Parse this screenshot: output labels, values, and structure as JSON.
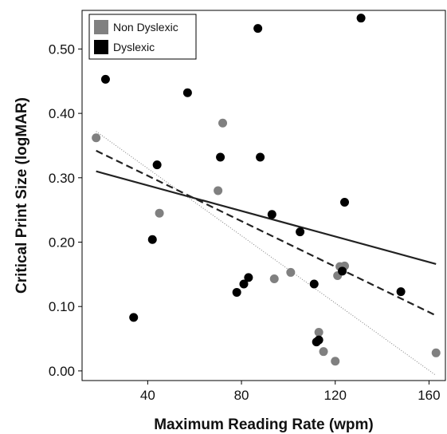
{
  "chart_data": {
    "type": "scatter",
    "xlabel": "Maximum Reading Rate (wpm)",
    "ylabel": "Critical Print Size (logMAR)",
    "xlim": [
      12,
      167
    ],
    "ylim": [
      -0.015,
      0.56
    ],
    "xticks": [
      40,
      80,
      120,
      160
    ],
    "yticks": [
      0.0,
      0.1,
      0.2,
      0.3,
      0.4,
      0.5
    ],
    "xtick_labels": [
      "40",
      "80",
      "120",
      "160"
    ],
    "ytick_labels": [
      "0.00",
      "0.10",
      "0.20",
      "0.30",
      "0.40",
      "0.50"
    ],
    "grid": false,
    "legend": {
      "position": "top-left"
    },
    "series": [
      {
        "name": "Non Dyslexic",
        "color": "#808080",
        "points": [
          [
            18,
            0.362
          ],
          [
            45,
            0.245
          ],
          [
            70,
            0.28
          ],
          [
            72,
            0.385
          ],
          [
            94,
            0.143
          ],
          [
            101,
            0.153
          ],
          [
            113,
            0.06
          ],
          [
            115,
            0.03
          ],
          [
            120,
            0.015
          ],
          [
            121,
            0.148
          ],
          [
            122,
            0.162
          ],
          [
            124,
            0.163
          ],
          [
            163,
            0.028
          ]
        ]
      },
      {
        "name": "Dyslexic",
        "color": "#000000",
        "points": [
          [
            22,
            0.453
          ],
          [
            34,
            0.083
          ],
          [
            42,
            0.204
          ],
          [
            44,
            0.32
          ],
          [
            57,
            0.432
          ],
          [
            71,
            0.332
          ],
          [
            78,
            0.122
          ],
          [
            81,
            0.135
          ],
          [
            83,
            0.145
          ],
          [
            87,
            0.532
          ],
          [
            88,
            0.332
          ],
          [
            93,
            0.243
          ],
          [
            105,
            0.216
          ],
          [
            111,
            0.135
          ],
          [
            112,
            0.045
          ],
          [
            113,
            0.048
          ],
          [
            123,
            0.155
          ],
          [
            124,
            0.262
          ],
          [
            131,
            0.548
          ],
          [
            148,
            0.123
          ]
        ]
      }
    ],
    "fit_lines": [
      {
        "style": "dotted",
        "color": "#808080",
        "x": [
          18,
          163
        ],
        "y": [
          0.372,
          -0.007
        ]
      },
      {
        "style": "dashed",
        "color": "#222222",
        "x": [
          18,
          163
        ],
        "y": [
          0.342,
          0.086
        ]
      },
      {
        "style": "solid",
        "color": "#222222",
        "x": [
          18,
          163
        ],
        "y": [
          0.31,
          0.166
        ]
      }
    ]
  }
}
